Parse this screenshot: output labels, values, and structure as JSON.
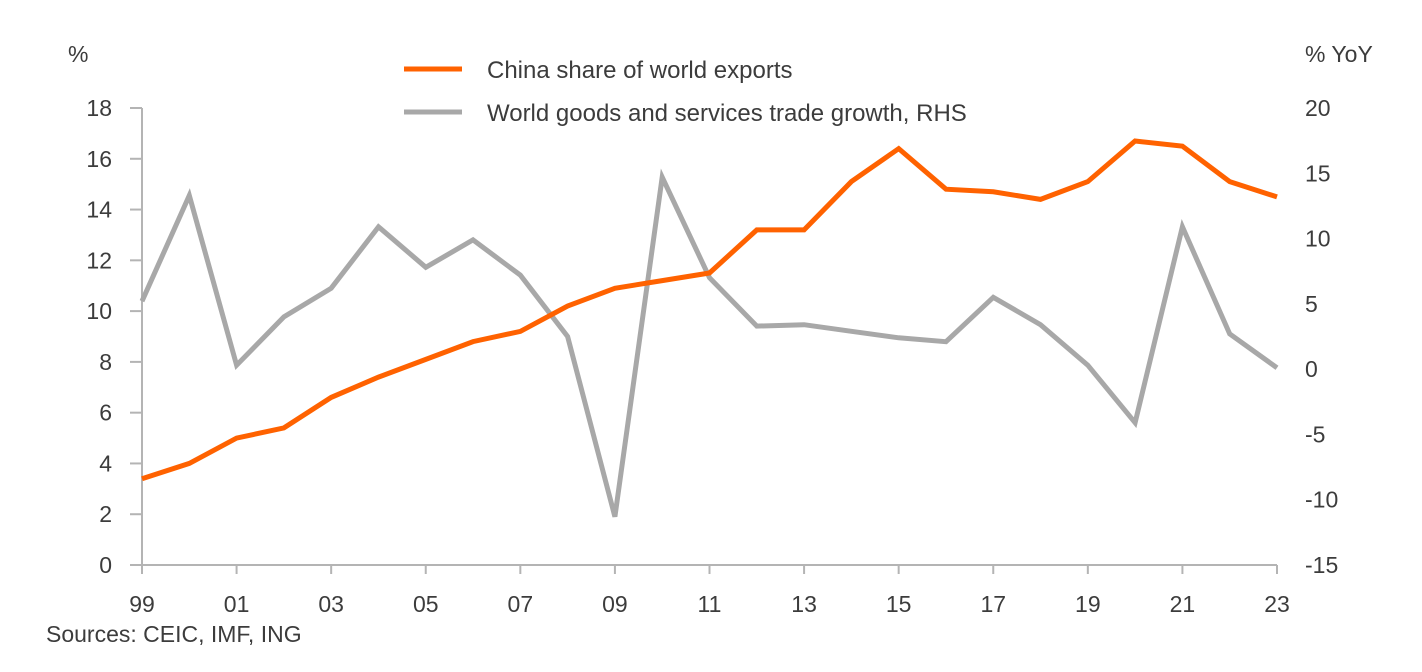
{
  "chart_data": {
    "type": "line",
    "title": "",
    "x": [
      "99",
      "00",
      "01",
      "02",
      "03",
      "04",
      "05",
      "06",
      "07",
      "08",
      "09",
      "10",
      "11",
      "12",
      "13",
      "14",
      "15",
      "16",
      "17",
      "18",
      "19",
      "20",
      "21",
      "22",
      "23"
    ],
    "x_tick_labels": [
      "99",
      "01",
      "03",
      "05",
      "07",
      "09",
      "11",
      "13",
      "15",
      "17",
      "19",
      "21",
      "23"
    ],
    "left_axis": {
      "unit_label": "%",
      "ylim": [
        0,
        18
      ],
      "ticks": [
        0,
        2,
        4,
        6,
        8,
        10,
        12,
        14,
        16,
        18
      ],
      "tick_labels": [
        "0",
        "2",
        "4",
        "6",
        "8",
        "10",
        "12",
        "14",
        "16",
        "18"
      ]
    },
    "right_axis": {
      "unit_label": "% YoY",
      "ylim": [
        -15,
        20
      ],
      "ticks": [
        -15,
        -10,
        -5,
        0,
        5,
        10,
        15,
        20
      ],
      "tick_labels": [
        "-15",
        "-10",
        "-5",
        "0",
        "5",
        "10",
        "15",
        "20"
      ]
    },
    "series": [
      {
        "name": "China share of world exports",
        "axis": "left",
        "color": "#ff6200",
        "values": [
          3.4,
          4.0,
          5.0,
          5.4,
          6.6,
          7.4,
          8.1,
          8.8,
          9.2,
          10.2,
          10.9,
          11.2,
          11.5,
          13.2,
          13.2,
          15.1,
          16.4,
          14.8,
          14.7,
          14.4,
          15.1,
          16.7,
          16.5,
          15.1,
          14.5
        ]
      },
      {
        "name": "World goods and services trade growth, RHS",
        "axis": "right",
        "color": "#a8a8a8",
        "values": [
          5.2,
          13.3,
          0.3,
          4.0,
          6.2,
          10.9,
          7.8,
          9.9,
          7.2,
          2.5,
          -11.3,
          14.7,
          7.0,
          3.3,
          3.4,
          2.9,
          2.4,
          2.1,
          5.5,
          3.4,
          0.3,
          -4.1,
          10.9,
          2.7,
          0.1
        ]
      }
    ],
    "legend_position": "top-center",
    "grid": false,
    "source": "Sources: CEIC, IMF, ING",
    "axis_color": "#b4b4b4",
    "text_color": "#3c3c3c"
  }
}
